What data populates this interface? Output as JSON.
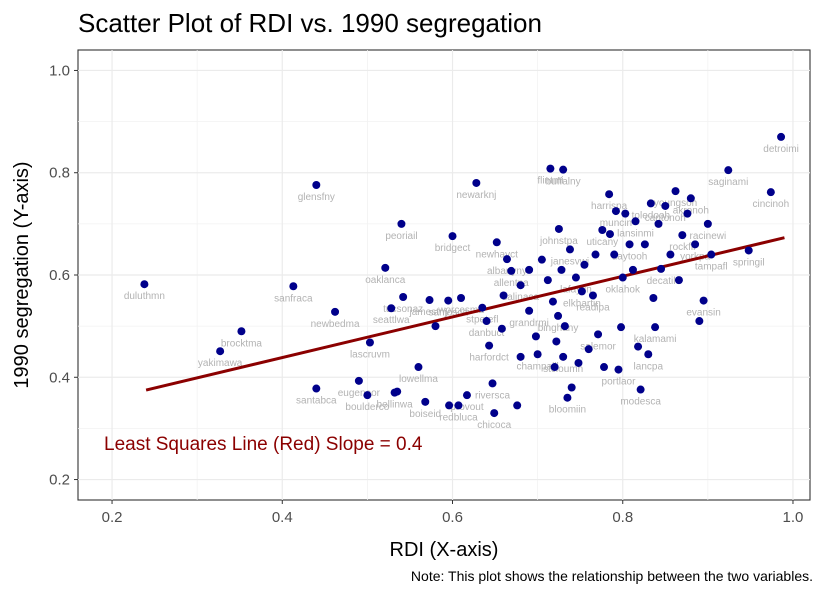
{
  "chart_data": {
    "type": "scatter",
    "title": "Scatter Plot of RDI vs. 1990 segregation",
    "xlabel": "RDI  (X-axis)",
    "ylabel": "1990 segregation  (Y-axis)",
    "xlim": [
      0.16,
      1.02
    ],
    "ylim": [
      0.16,
      1.04
    ],
    "xticks": [
      "0.2",
      "0.4",
      "0.6",
      "0.8",
      "1.0"
    ],
    "yticks": [
      "0.2",
      "0.4",
      "0.6",
      "0.8",
      "1.0"
    ],
    "grid": true,
    "point_color": "#00008b",
    "line_color": "#8b0000",
    "label_color": "#b3b3b3",
    "fit_line": {
      "x": [
        0.24,
        0.99
      ],
      "y": [
        0.375,
        0.673
      ]
    },
    "annotation": "Least Squares Line (Red) Slope = 0.4",
    "note": "Note: This plot shows the relationship between the two variables.",
    "points": [
      {
        "x": 0.238,
        "y": 0.582,
        "label": "duluthmn"
      },
      {
        "x": 0.327,
        "y": 0.451,
        "label": "yakimawa"
      },
      {
        "x": 0.352,
        "y": 0.49,
        "label": "brocktma"
      },
      {
        "x": 0.413,
        "y": 0.578,
        "label": "sanfraca"
      },
      {
        "x": 0.44,
        "y": 0.776,
        "label": "glensfny"
      },
      {
        "x": 0.44,
        "y": 0.378,
        "label": "santabca"
      },
      {
        "x": 0.462,
        "y": 0.528,
        "label": "newbedma"
      },
      {
        "x": 0.49,
        "y": 0.393,
        "label": "eugeneor"
      },
      {
        "x": 0.503,
        "y": 0.468,
        "label": "lascruvm"
      },
      {
        "x": 0.5,
        "y": 0.365,
        "label": "boulderco"
      },
      {
        "x": 0.521,
        "y": 0.614,
        "label": "oaklanca"
      },
      {
        "x": 0.528,
        "y": 0.535,
        "label": "seattlwa"
      },
      {
        "x": 0.54,
        "y": 0.7,
        "label": "peoriail"
      },
      {
        "x": 0.542,
        "y": 0.557,
        "label": "tucsonaz"
      },
      {
        "x": 0.532,
        "y": 0.37,
        "label": "bellinwa"
      },
      {
        "x": 0.56,
        "y": 0.42,
        "label": "lowellma"
      },
      {
        "x": 0.568,
        "y": 0.352,
        "label": "boiseid"
      },
      {
        "x": 0.573,
        "y": 0.551,
        "label": "jamestny"
      },
      {
        "x": 0.595,
        "y": 0.55,
        "label": "sanjosca"
      },
      {
        "x": 0.6,
        "y": 0.676,
        "label": "bridgect"
      },
      {
        "x": 0.61,
        "y": 0.555,
        "label": "worcesma"
      },
      {
        "x": 0.607,
        "y": 0.345,
        "label": "redbluca"
      },
      {
        "x": 0.617,
        "y": 0.365,
        "label": "provout"
      },
      {
        "x": 0.628,
        "y": 0.78,
        "label": "newarknj"
      },
      {
        "x": 0.635,
        "y": 0.536,
        "label": "stpetefl"
      },
      {
        "x": 0.64,
        "y": 0.51,
        "label": "danbuct"
      },
      {
        "x": 0.643,
        "y": 0.462,
        "label": "harfordct"
      },
      {
        "x": 0.647,
        "y": 0.388,
        "label": "riversca"
      },
      {
        "x": 0.649,
        "y": 0.33,
        "label": "chicoca"
      },
      {
        "x": 0.652,
        "y": 0.664,
        "label": "newhavct"
      },
      {
        "x": 0.664,
        "y": 0.631,
        "label": "albanyny"
      },
      {
        "x": 0.669,
        "y": 0.608,
        "label": "allentpa"
      },
      {
        "x": 0.68,
        "y": 0.58,
        "label": "salinaca"
      },
      {
        "x": 0.69,
        "y": 0.53,
        "label": "grandrmi"
      },
      {
        "x": 0.7,
        "y": 0.445,
        "label": "champaill"
      },
      {
        "x": 0.715,
        "y": 0.808,
        "label": "flintmi"
      },
      {
        "x": 0.73,
        "y": 0.806,
        "label": "buffalny"
      },
      {
        "x": 0.725,
        "y": 0.69,
        "label": "johnstpa"
      },
      {
        "x": 0.738,
        "y": 0.65,
        "label": "janesvwi"
      },
      {
        "x": 0.724,
        "y": 0.52,
        "label": "binghany"
      },
      {
        "x": 0.73,
        "y": 0.44,
        "label": "stcloumn"
      },
      {
        "x": 0.735,
        "y": 0.36,
        "label": "bloomiin"
      },
      {
        "x": 0.745,
        "y": 0.595,
        "label": "lafaytin"
      },
      {
        "x": 0.752,
        "y": 0.568,
        "label": "elkhartin"
      },
      {
        "x": 0.765,
        "y": 0.56,
        "label": "readipa"
      },
      {
        "x": 0.771,
        "y": 0.484,
        "label": "salemor"
      },
      {
        "x": 0.776,
        "y": 0.688,
        "label": "uticany"
      },
      {
        "x": 0.784,
        "y": 0.758,
        "label": "harrispa"
      },
      {
        "x": 0.792,
        "y": 0.725,
        "label": "muncin"
      },
      {
        "x": 0.795,
        "y": 0.415,
        "label": "portlaor"
      },
      {
        "x": 0.8,
        "y": 0.595,
        "label": "oklahok"
      },
      {
        "x": 0.808,
        "y": 0.66,
        "label": "daytooh"
      },
      {
        "x": 0.815,
        "y": 0.705,
        "label": "lansinmi"
      },
      {
        "x": 0.821,
        "y": 0.376,
        "label": "modesca"
      },
      {
        "x": 0.83,
        "y": 0.445,
        "label": "lancpa"
      },
      {
        "x": 0.833,
        "y": 0.74,
        "label": "toledooh"
      },
      {
        "x": 0.838,
        "y": 0.498,
        "label": "kalamami"
      },
      {
        "x": 0.845,
        "y": 0.612,
        "label": "decatil"
      },
      {
        "x": 0.85,
        "y": 0.735,
        "label": "cantonoh"
      },
      {
        "x": 0.862,
        "y": 0.764,
        "label": "youngsoh"
      },
      {
        "x": 0.87,
        "y": 0.678,
        "label": "rockfil"
      },
      {
        "x": 0.88,
        "y": 0.75,
        "label": "akronoh"
      },
      {
        "x": 0.885,
        "y": 0.66,
        "label": "yorkpa"
      },
      {
        "x": 0.895,
        "y": 0.55,
        "label": "evansin"
      },
      {
        "x": 0.9,
        "y": 0.7,
        "label": "racinewi"
      },
      {
        "x": 0.904,
        "y": 0.64,
        "label": "tampafl"
      },
      {
        "x": 0.924,
        "y": 0.805,
        "label": "saginami"
      },
      {
        "x": 0.948,
        "y": 0.648,
        "label": "springil"
      },
      {
        "x": 0.974,
        "y": 0.762,
        "label": "cincinoh"
      },
      {
        "x": 0.986,
        "y": 0.87,
        "label": "detroimi"
      },
      {
        "x": 0.705,
        "y": 0.63,
        "label": ""
      },
      {
        "x": 0.712,
        "y": 0.59,
        "label": ""
      },
      {
        "x": 0.718,
        "y": 0.548,
        "label": ""
      },
      {
        "x": 0.722,
        "y": 0.47,
        "label": ""
      },
      {
        "x": 0.728,
        "y": 0.61,
        "label": ""
      },
      {
        "x": 0.732,
        "y": 0.5,
        "label": ""
      },
      {
        "x": 0.74,
        "y": 0.38,
        "label": ""
      },
      {
        "x": 0.748,
        "y": 0.428,
        "label": ""
      },
      {
        "x": 0.755,
        "y": 0.62,
        "label": ""
      },
      {
        "x": 0.76,
        "y": 0.455,
        "label": ""
      },
      {
        "x": 0.768,
        "y": 0.64,
        "label": ""
      },
      {
        "x": 0.778,
        "y": 0.42,
        "label": ""
      },
      {
        "x": 0.785,
        "y": 0.68,
        "label": ""
      },
      {
        "x": 0.79,
        "y": 0.64,
        "label": ""
      },
      {
        "x": 0.798,
        "y": 0.498,
        "label": ""
      },
      {
        "x": 0.803,
        "y": 0.72,
        "label": ""
      },
      {
        "x": 0.812,
        "y": 0.61,
        "label": ""
      },
      {
        "x": 0.818,
        "y": 0.46,
        "label": ""
      },
      {
        "x": 0.826,
        "y": 0.66,
        "label": ""
      },
      {
        "x": 0.836,
        "y": 0.555,
        "label": ""
      },
      {
        "x": 0.842,
        "y": 0.7,
        "label": ""
      },
      {
        "x": 0.856,
        "y": 0.64,
        "label": ""
      },
      {
        "x": 0.866,
        "y": 0.59,
        "label": ""
      },
      {
        "x": 0.876,
        "y": 0.72,
        "label": ""
      },
      {
        "x": 0.89,
        "y": 0.51,
        "label": ""
      },
      {
        "x": 0.68,
        "y": 0.44,
        "label": ""
      },
      {
        "x": 0.69,
        "y": 0.61,
        "label": ""
      },
      {
        "x": 0.698,
        "y": 0.48,
        "label": ""
      },
      {
        "x": 0.676,
        "y": 0.345,
        "label": ""
      },
      {
        "x": 0.66,
        "y": 0.56,
        "label": ""
      },
      {
        "x": 0.596,
        "y": 0.345,
        "label": ""
      },
      {
        "x": 0.58,
        "y": 0.5,
        "label": ""
      },
      {
        "x": 0.535,
        "y": 0.372,
        "label": ""
      },
      {
        "x": 0.658,
        "y": 0.495,
        "label": ""
      },
      {
        "x": 0.72,
        "y": 0.42,
        "label": ""
      }
    ]
  }
}
